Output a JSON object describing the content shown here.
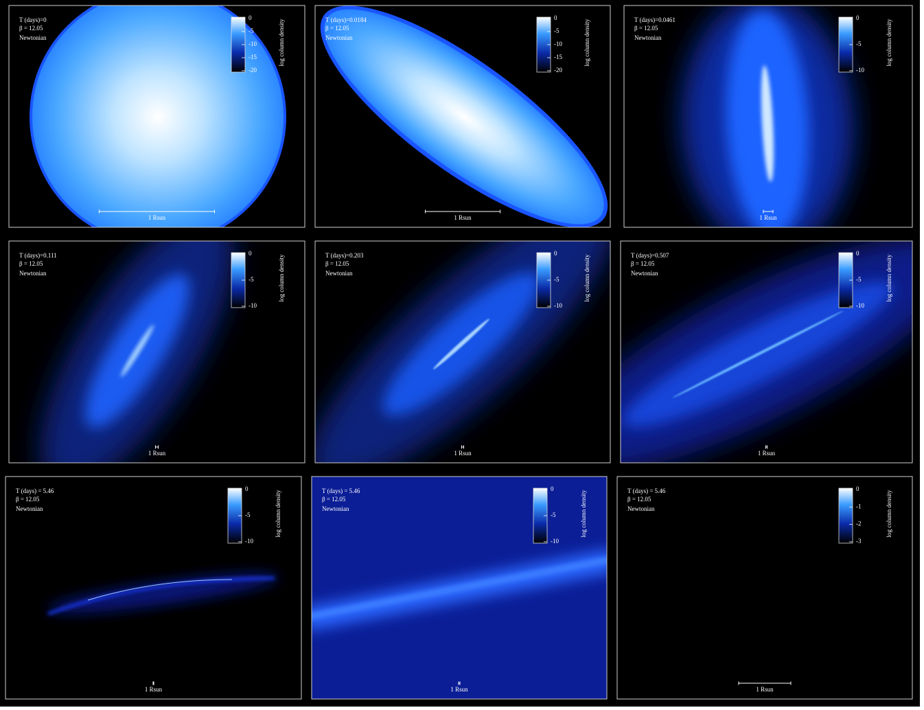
{
  "panels": [
    {
      "time": "T (days)=0",
      "beta": "β = 12.05",
      "regime": "Newtonian",
      "colorbar": {
        "label": "log column density",
        "ticks": [
          0,
          -5,
          -10,
          -15,
          -20
        ]
      },
      "scale_label": "1 Rsun"
    },
    {
      "time": "T (days)=0.0184",
      "beta": "β = 12.05",
      "regime": "Newtonian",
      "colorbar": {
        "label": "log column density",
        "ticks": [
          0,
          -5,
          -10,
          -15,
          -20
        ]
      },
      "scale_label": "1 Rsun"
    },
    {
      "time": "T (days)=0.0461",
      "beta": "β = 12.05",
      "regime": "Newtonian",
      "colorbar": {
        "label": "log column density",
        "ticks": [
          0,
          -5,
          -10
        ]
      },
      "scale_label": "1 Rsun"
    },
    {
      "time": "T (days)=0.111",
      "beta": "β = 12.05",
      "regime": "Newtonian",
      "colorbar": {
        "label": "log column density",
        "ticks": [
          0,
          -5,
          -10
        ]
      },
      "scale_label": "1 Rsun"
    },
    {
      "time": "T (days)=0.203",
      "beta": "β = 12.05",
      "regime": "Newtonian",
      "colorbar": {
        "label": "log column density",
        "ticks": [
          0,
          -5,
          -10
        ]
      },
      "scale_label": "1 Rsun"
    },
    {
      "time": "T (days)=0.507",
      "beta": "β = 12.05",
      "regime": "Newtonian",
      "colorbar": {
        "label": "log column density",
        "ticks": [
          0,
          -5,
          -10
        ]
      },
      "scale_label": "1 Rsun"
    },
    {
      "time": "T (days) = 5.46",
      "beta": "β = 12.05",
      "regime": "Newtonian",
      "colorbar": {
        "label": "log column density",
        "ticks": [
          0,
          -5,
          -10
        ]
      },
      "scale_label": "1 Rsun"
    },
    {
      "time": "T (days) = 5.46",
      "beta": "β = 12.05",
      "regime": "Newtonian",
      "colorbar": {
        "label": "log column density",
        "ticks": [
          0,
          -5,
          -10
        ]
      },
      "scale_label": "1 Rsun"
    },
    {
      "time": "T (days) = 5.46",
      "beta": "β = 12.05",
      "regime": "Newtonian",
      "colorbar": {
        "label": "log column density",
        "ticks": [
          0,
          -1,
          -2,
          -3
        ]
      },
      "scale_label": "1 Rsun"
    }
  ]
}
